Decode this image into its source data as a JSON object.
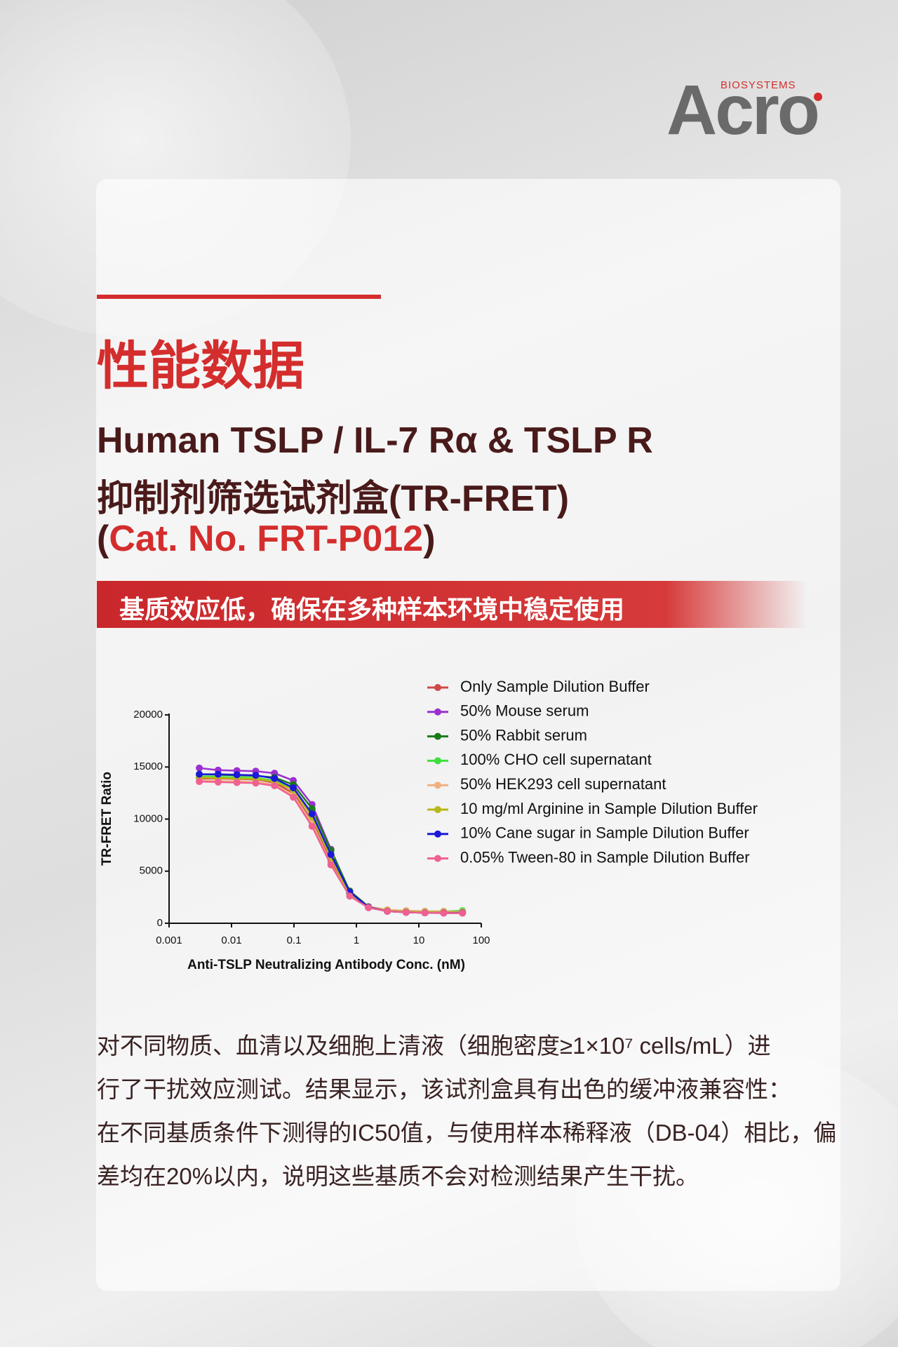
{
  "logo": {
    "brand": "Acro",
    "sub": "BIOSYSTEMS"
  },
  "header": {
    "heading": "性能数据",
    "title_lines": [
      "Human TSLP / IL-7 Rα & TSLP R",
      "抑制剂筛选试剂盒(TR-FRET)"
    ],
    "catalog": {
      "open": "(",
      "text": "Cat. No. FRT-P012",
      "close": ")"
    }
  },
  "banner": "基质效应低，确保在多种样本环境中稳定使用",
  "paragraph": [
    "对不同物质、血清以及细胞上清液（细胞密度≥1×10⁷ cells/mL）进",
    "行了干扰效应测试。结果显示，该试剂盒具有出色的缓冲液兼容性：",
    "在不同基质条件下测得的IC50值，与使用样本稀释液（DB-04）相比，偏",
    "差均在20%以内，说明这些基质不会对检测结果产生干扰。"
  ],
  "chart_data": {
    "type": "line",
    "x_label": "Anti-TSLP Neutralizing Antibody Conc. (nM)",
    "y_label": "TR-FRET Ratio",
    "xscale": "log",
    "xlim": [
      0.001,
      100
    ],
    "xticks": [
      0.001,
      0.01,
      0.1,
      1,
      10,
      100
    ],
    "ylim": [
      0,
      20000
    ],
    "yticks": [
      0,
      5000,
      10000,
      15000,
      20000
    ],
    "grid": false,
    "legend": "upper right",
    "x": [
      0.00305,
      0.0061,
      0.0122,
      0.0244,
      0.0488,
      0.0977,
      0.195,
      0.391,
      0.781,
      1.56,
      3.13,
      6.25,
      12.5,
      25,
      50
    ],
    "series": [
      {
        "name": "Only Sample Dilution Buffer",
        "color": "#d04848",
        "values": [
          13900,
          13900,
          13850,
          13800,
          13500,
          12500,
          9800,
          5900,
          2900,
          1600,
          1200,
          1080,
          1050,
          1020,
          1000
        ]
      },
      {
        "name": "50% Mouse serum",
        "color": "#9b30d0",
        "values": [
          14900,
          14700,
          14650,
          14600,
          14400,
          13700,
          11400,
          7100,
          3000,
          1500,
          1150,
          1050,
          1000,
          980,
          980
        ]
      },
      {
        "name": "50% Rabbit serum",
        "color": "#1a7a1a",
        "values": [
          14300,
          14250,
          14200,
          14150,
          14000,
          13300,
          11000,
          7000,
          3100,
          1600,
          1250,
          1150,
          1100,
          1080,
          1050
        ]
      },
      {
        "name": "100% CHO cell supernatant",
        "color": "#3ee03e",
        "values": [
          14100,
          14050,
          14000,
          13950,
          13700,
          12900,
          10400,
          6400,
          2900,
          1600,
          1250,
          1200,
          1150,
          1150,
          1200
        ]
      },
      {
        "name": "50% HEK293 cell supernatant",
        "color": "#f0b080",
        "values": [
          13700,
          13650,
          13600,
          13550,
          13300,
          12300,
          9600,
          5700,
          2700,
          1600,
          1300,
          1200,
          1150,
          1150,
          1100
        ]
      },
      {
        "name": "10 mg/ml Arginine in Sample Dilution Buffer",
        "color": "#b8b818",
        "values": [
          14000,
          13950,
          13900,
          13850,
          13600,
          12800,
          10200,
          6300,
          2800,
          1550,
          1200,
          1100,
          1050,
          1050,
          1050
        ]
      },
      {
        "name": "10% Cane sugar in Sample Dilution Buffer",
        "color": "#1a1ad8",
        "values": [
          14300,
          14300,
          14250,
          14200,
          13900,
          13000,
          10500,
          6600,
          3000,
          1550,
          1150,
          1050,
          1000,
          1000,
          1000
        ]
      },
      {
        "name": "0.05% Tween-80 in Sample Dilution Buffer",
        "color": "#f06090",
        "values": [
          13600,
          13550,
          13500,
          13450,
          13200,
          12100,
          9300,
          5600,
          2600,
          1500,
          1150,
          1050,
          1000,
          990,
          980
        ]
      }
    ]
  }
}
